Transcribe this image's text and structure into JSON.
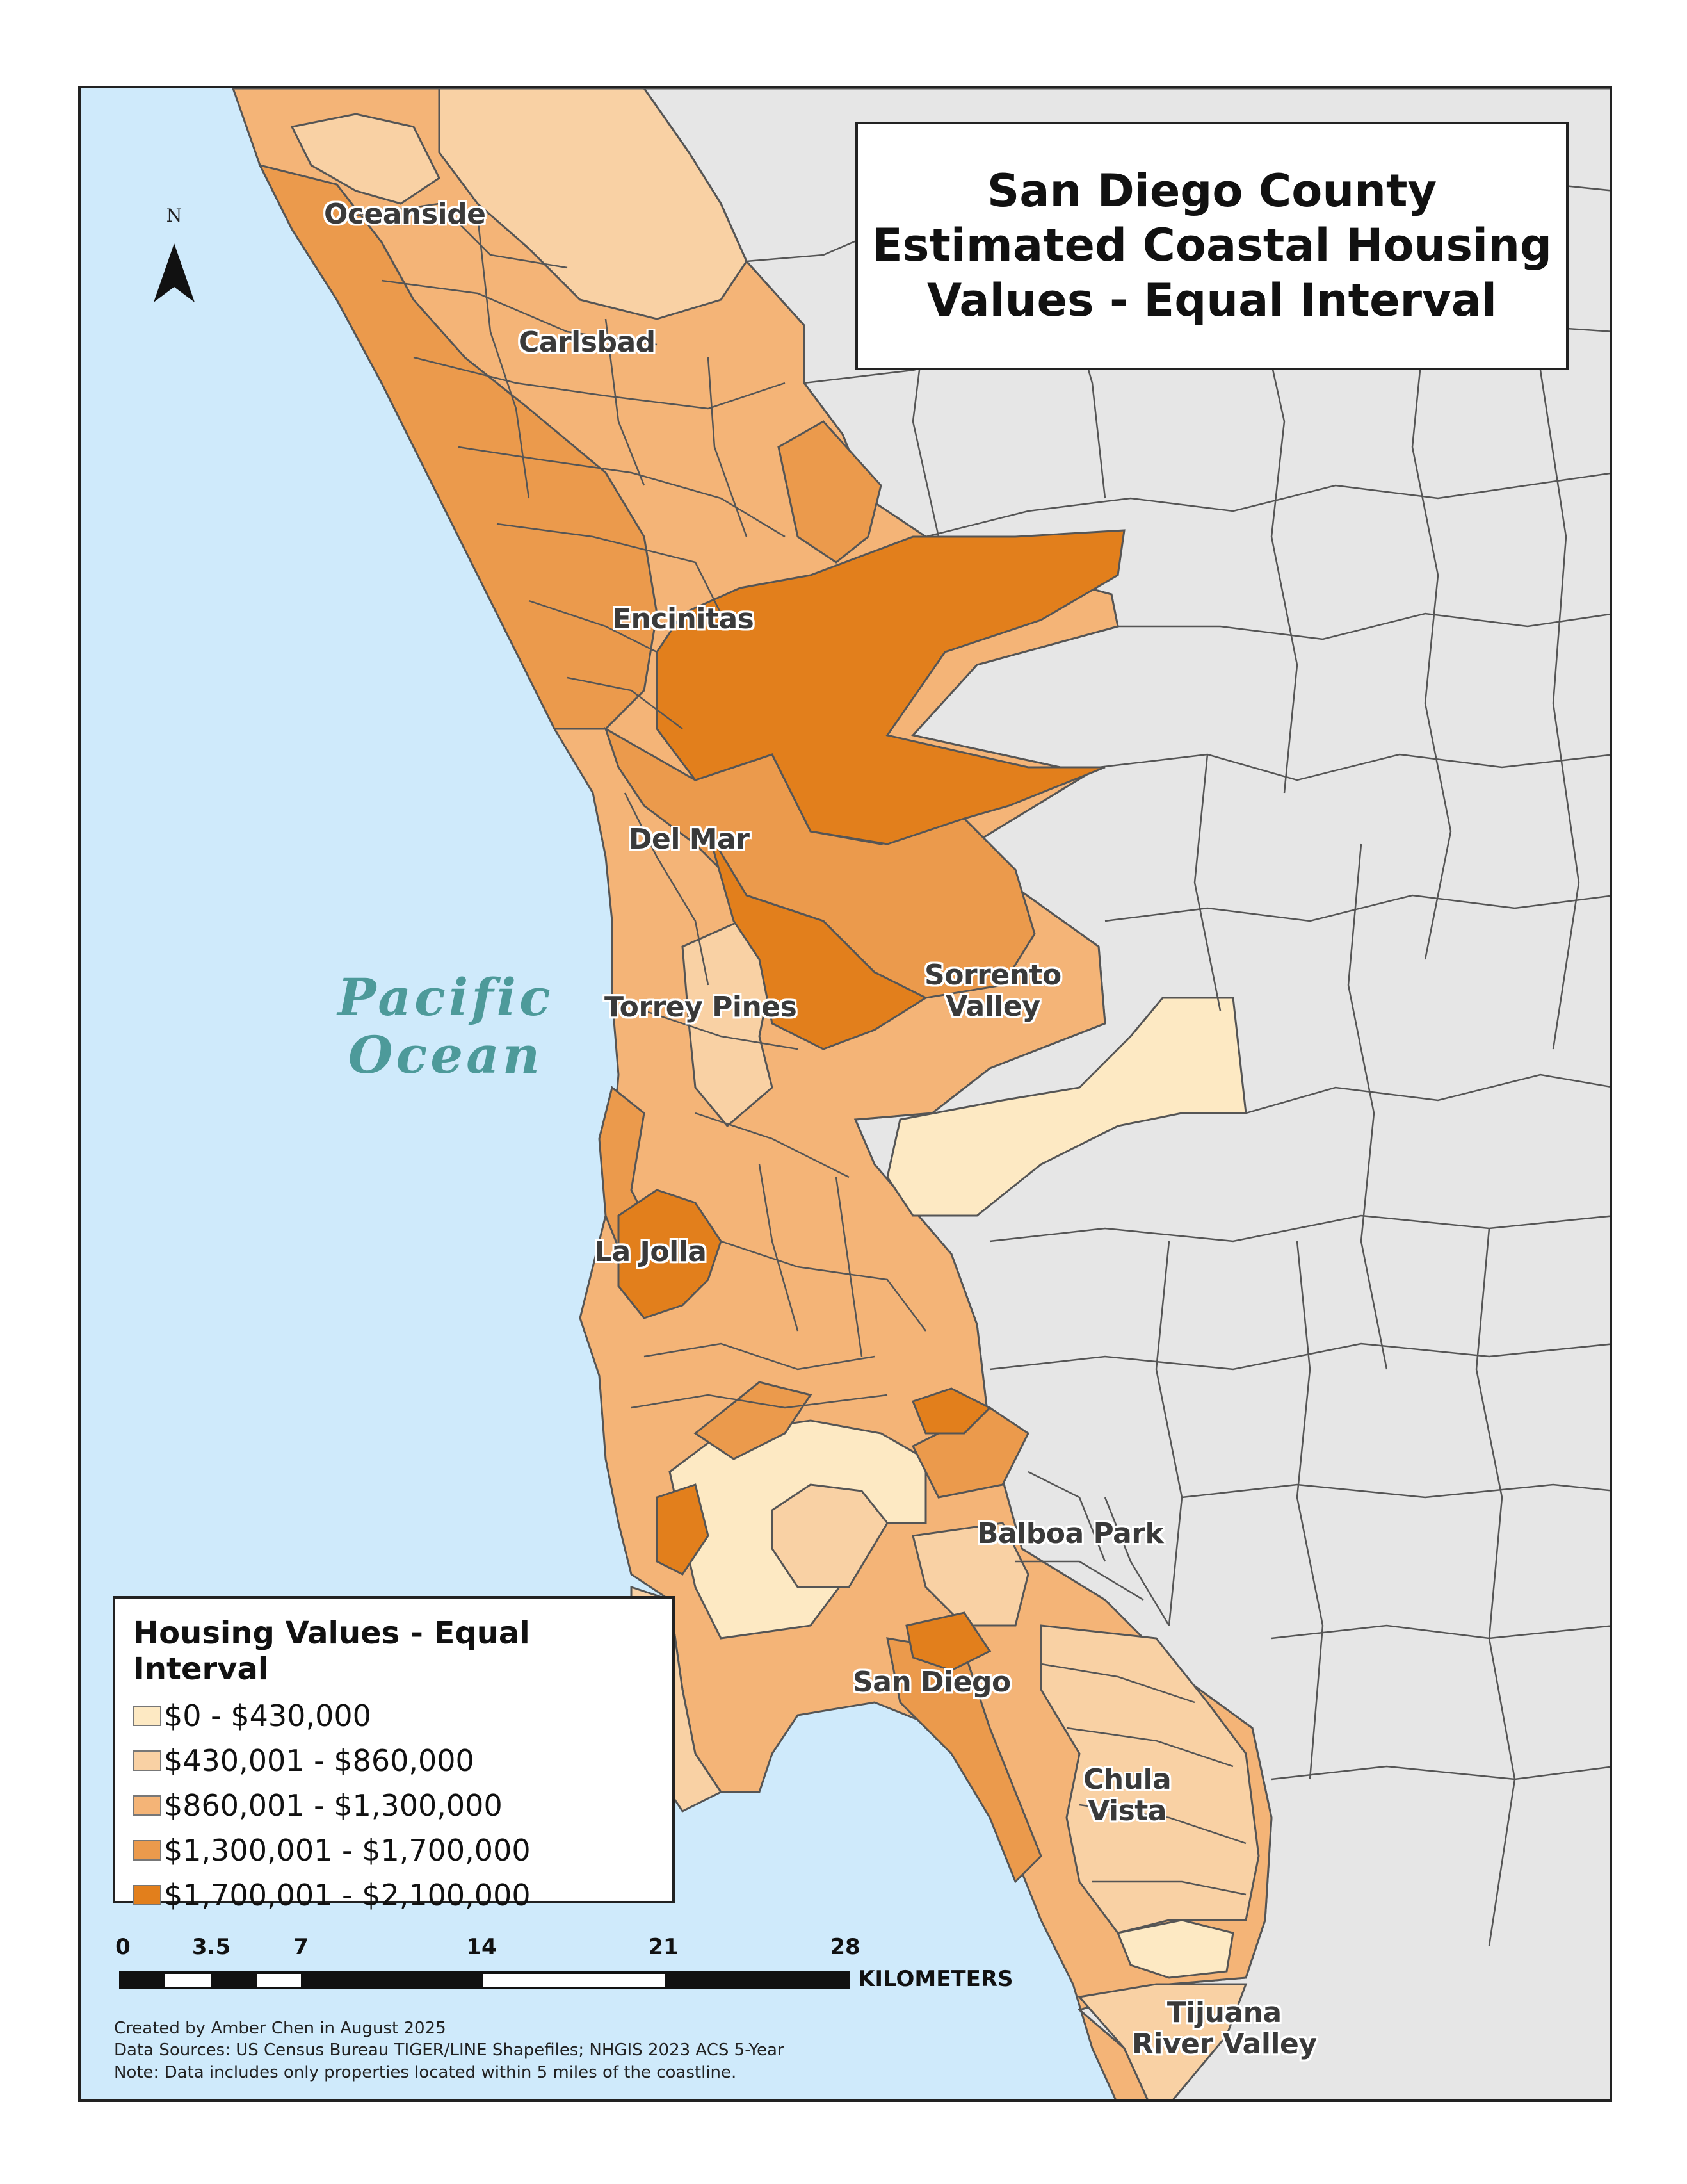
{
  "map": {
    "title": "San Diego County\nEstimated Coastal Housing\nValues - Equal Interval",
    "ocean_label": "Pacific\nOcean",
    "north_label": "N",
    "places": [
      {
        "name": "Oceanside"
      },
      {
        "name": "Carlsbad"
      },
      {
        "name": "Encinitas"
      },
      {
        "name": "Del Mar"
      },
      {
        "name": "Torrey Pines"
      },
      {
        "name": "Sorrento\nValley"
      },
      {
        "name": "La Jolla"
      },
      {
        "name": "Balboa Park"
      },
      {
        "name": "San Diego"
      },
      {
        "name": "Chula\nVista"
      },
      {
        "name": "Tijuana\nRiver Valley"
      }
    ],
    "colors": {
      "ocean": "#cfeafb",
      "land_outside": "#e6e6e6",
      "boundary": "#555555"
    }
  },
  "legend": {
    "title": "Housing Values - Equal Interval",
    "classes": [
      {
        "label": "$0 - $430,000",
        "color": "#fde9c3"
      },
      {
        "label": "$430,001 - $860,000",
        "color": "#f9d1a4"
      },
      {
        "label": "$860,001 - $1,300,000",
        "color": "#f4b477"
      },
      {
        "label": "$1,300,001 - $1,700,000",
        "color": "#eb9a4c"
      },
      {
        "label": "$1,700,001 - $2,100,000",
        "color": "#e27f1c"
      }
    ]
  },
  "scale_bar": {
    "ticks": [
      "0",
      "3.5",
      "7",
      "14",
      "21",
      "28"
    ],
    "unit": "KILOMETERS"
  },
  "credits": [
    "Created by Amber Chen in August 2025",
    "Data Sources: US Census Bureau TIGER/LINE Shapefiles; NHGIS 2023 ACS 5-Year",
    "Note: Data includes only properties located within 5 miles of the coastline."
  ]
}
